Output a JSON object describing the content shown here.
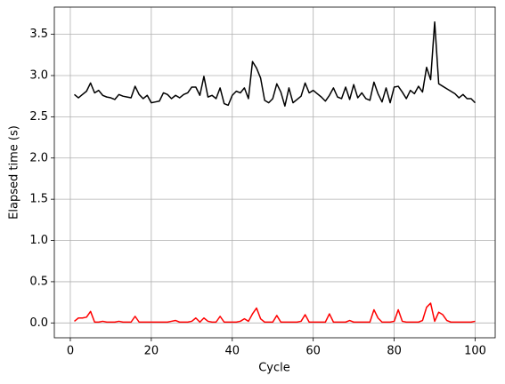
{
  "chart_data": {
    "type": "line",
    "x_label": "Cycle",
    "y_label": "Elapsed time (s)",
    "x": [
      1,
      2,
      3,
      4,
      5,
      6,
      7,
      8,
      9,
      10,
      11,
      12,
      13,
      14,
      15,
      16,
      17,
      18,
      19,
      20,
      21,
      22,
      23,
      24,
      25,
      26,
      27,
      28,
      29,
      30,
      31,
      32,
      33,
      34,
      35,
      36,
      37,
      38,
      39,
      40,
      41,
      42,
      43,
      44,
      45,
      46,
      47,
      48,
      49,
      50,
      51,
      52,
      53,
      54,
      55,
      56,
      57,
      58,
      59,
      60,
      61,
      62,
      63,
      64,
      65,
      66,
      67,
      68,
      69,
      70,
      71,
      72,
      73,
      74,
      75,
      76,
      77,
      78,
      79,
      80,
      81,
      82,
      83,
      84,
      85,
      86,
      87,
      88,
      89,
      90,
      91,
      92,
      93,
      94,
      95,
      96,
      97,
      98,
      99,
      100
    ],
    "series": [
      {
        "color": "#000000",
        "values": [
          2.77,
          2.73,
          2.77,
          2.81,
          2.91,
          2.79,
          2.82,
          2.76,
          2.74,
          2.73,
          2.71,
          2.77,
          2.75,
          2.74,
          2.73,
          2.87,
          2.77,
          2.72,
          2.76,
          2.67,
          2.68,
          2.69,
          2.79,
          2.77,
          2.72,
          2.76,
          2.73,
          2.77,
          2.79,
          2.86,
          2.86,
          2.76,
          2.99,
          2.74,
          2.76,
          2.72,
          2.85,
          2.66,
          2.64,
          2.76,
          2.81,
          2.79,
          2.85,
          2.72,
          3.17,
          3.09,
          2.97,
          2.7,
          2.67,
          2.72,
          2.9,
          2.8,
          2.63,
          2.85,
          2.67,
          2.71,
          2.75,
          2.91,
          2.79,
          2.82,
          2.78,
          2.74,
          2.69,
          2.76,
          2.85,
          2.74,
          2.72,
          2.86,
          2.71,
          2.89,
          2.73,
          2.79,
          2.72,
          2.7,
          2.92,
          2.78,
          2.68,
          2.85,
          2.67,
          2.86,
          2.87,
          2.8,
          2.72,
          2.82,
          2.78,
          2.87,
          2.8,
          3.1,
          2.95,
          3.65,
          2.9,
          2.87,
          2.84,
          2.81,
          2.78,
          2.73,
          2.77,
          2.72,
          2.72,
          2.67
        ]
      },
      {
        "color": "#ff0000",
        "values": [
          0.02,
          0.06,
          0.06,
          0.07,
          0.14,
          0.01,
          0.01,
          0.02,
          0.01,
          0.01,
          0.01,
          0.02,
          0.01,
          0.01,
          0.01,
          0.08,
          0.01,
          0.01,
          0.01,
          0.01,
          0.01,
          0.01,
          0.01,
          0.01,
          0.02,
          0.03,
          0.01,
          0.01,
          0.01,
          0.02,
          0.06,
          0.01,
          0.06,
          0.02,
          0.01,
          0.01,
          0.08,
          0.01,
          0.01,
          0.01,
          0.01,
          0.02,
          0.05,
          0.02,
          0.11,
          0.18,
          0.05,
          0.01,
          0.01,
          0.01,
          0.09,
          0.01,
          0.01,
          0.01,
          0.01,
          0.01,
          0.02,
          0.1,
          0.01,
          0.01,
          0.01,
          0.01,
          0.01,
          0.11,
          0.01,
          0.01,
          0.01,
          0.01,
          0.03,
          0.01,
          0.01,
          0.01,
          0.01,
          0.01,
          0.16,
          0.06,
          0.01,
          0.01,
          0.01,
          0.02,
          0.16,
          0.02,
          0.01,
          0.01,
          0.01,
          0.01,
          0.03,
          0.19,
          0.24,
          0.02,
          0.13,
          0.1,
          0.03,
          0.01,
          0.01,
          0.01,
          0.01,
          0.01,
          0.01,
          0.02
        ]
      }
    ],
    "xlim": [
      -3.95,
      104.95
    ],
    "ylim": [
      -0.18,
      3.83
    ],
    "xticks": [
      0,
      20,
      40,
      60,
      80,
      100
    ],
    "yticks": [
      {
        "value": 0,
        "label": "0.0"
      },
      0.5,
      {
        "value": 1,
        "label": "1.0"
      },
      1.5,
      {
        "value": 2,
        "label": "2.0"
      },
      2.5,
      {
        "value": 3,
        "label": "3.0"
      },
      3.5
    ],
    "grid": true
  }
}
